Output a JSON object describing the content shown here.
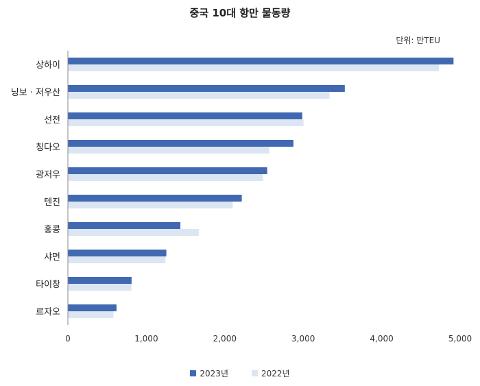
{
  "chart_data": {
    "type": "bar",
    "orientation": "horizontal",
    "title": "중국 10대 항만 물동량",
    "unit": "단위: 만TEU",
    "categories": [
      "상하이",
      "닝보 · 저우산",
      "선전",
      "칭다오",
      "광저우",
      "텐진",
      "홍콩",
      "샤먼",
      "타이창",
      "르자오"
    ],
    "series": [
      {
        "name": "2023년",
        "color": "#4169b2",
        "values": [
          4916,
          3530,
          2988,
          2875,
          2541,
          2217,
          1434,
          1255,
          812,
          620
        ]
      },
      {
        "name": "2022년",
        "color": "#dce6f3",
        "values": [
          4730,
          3335,
          3004,
          2567,
          2486,
          2102,
          1669,
          1243,
          810,
          580
        ]
      }
    ],
    "xlim": [
      0,
      5000
    ],
    "xticks": [
      0,
      1000,
      2000,
      3000,
      4000,
      5000
    ],
    "xtick_labels": [
      "0",
      "1,000",
      "2,000",
      "3,000",
      "4,000",
      "5,000"
    ],
    "grid": false,
    "legend_position": "bottom"
  }
}
